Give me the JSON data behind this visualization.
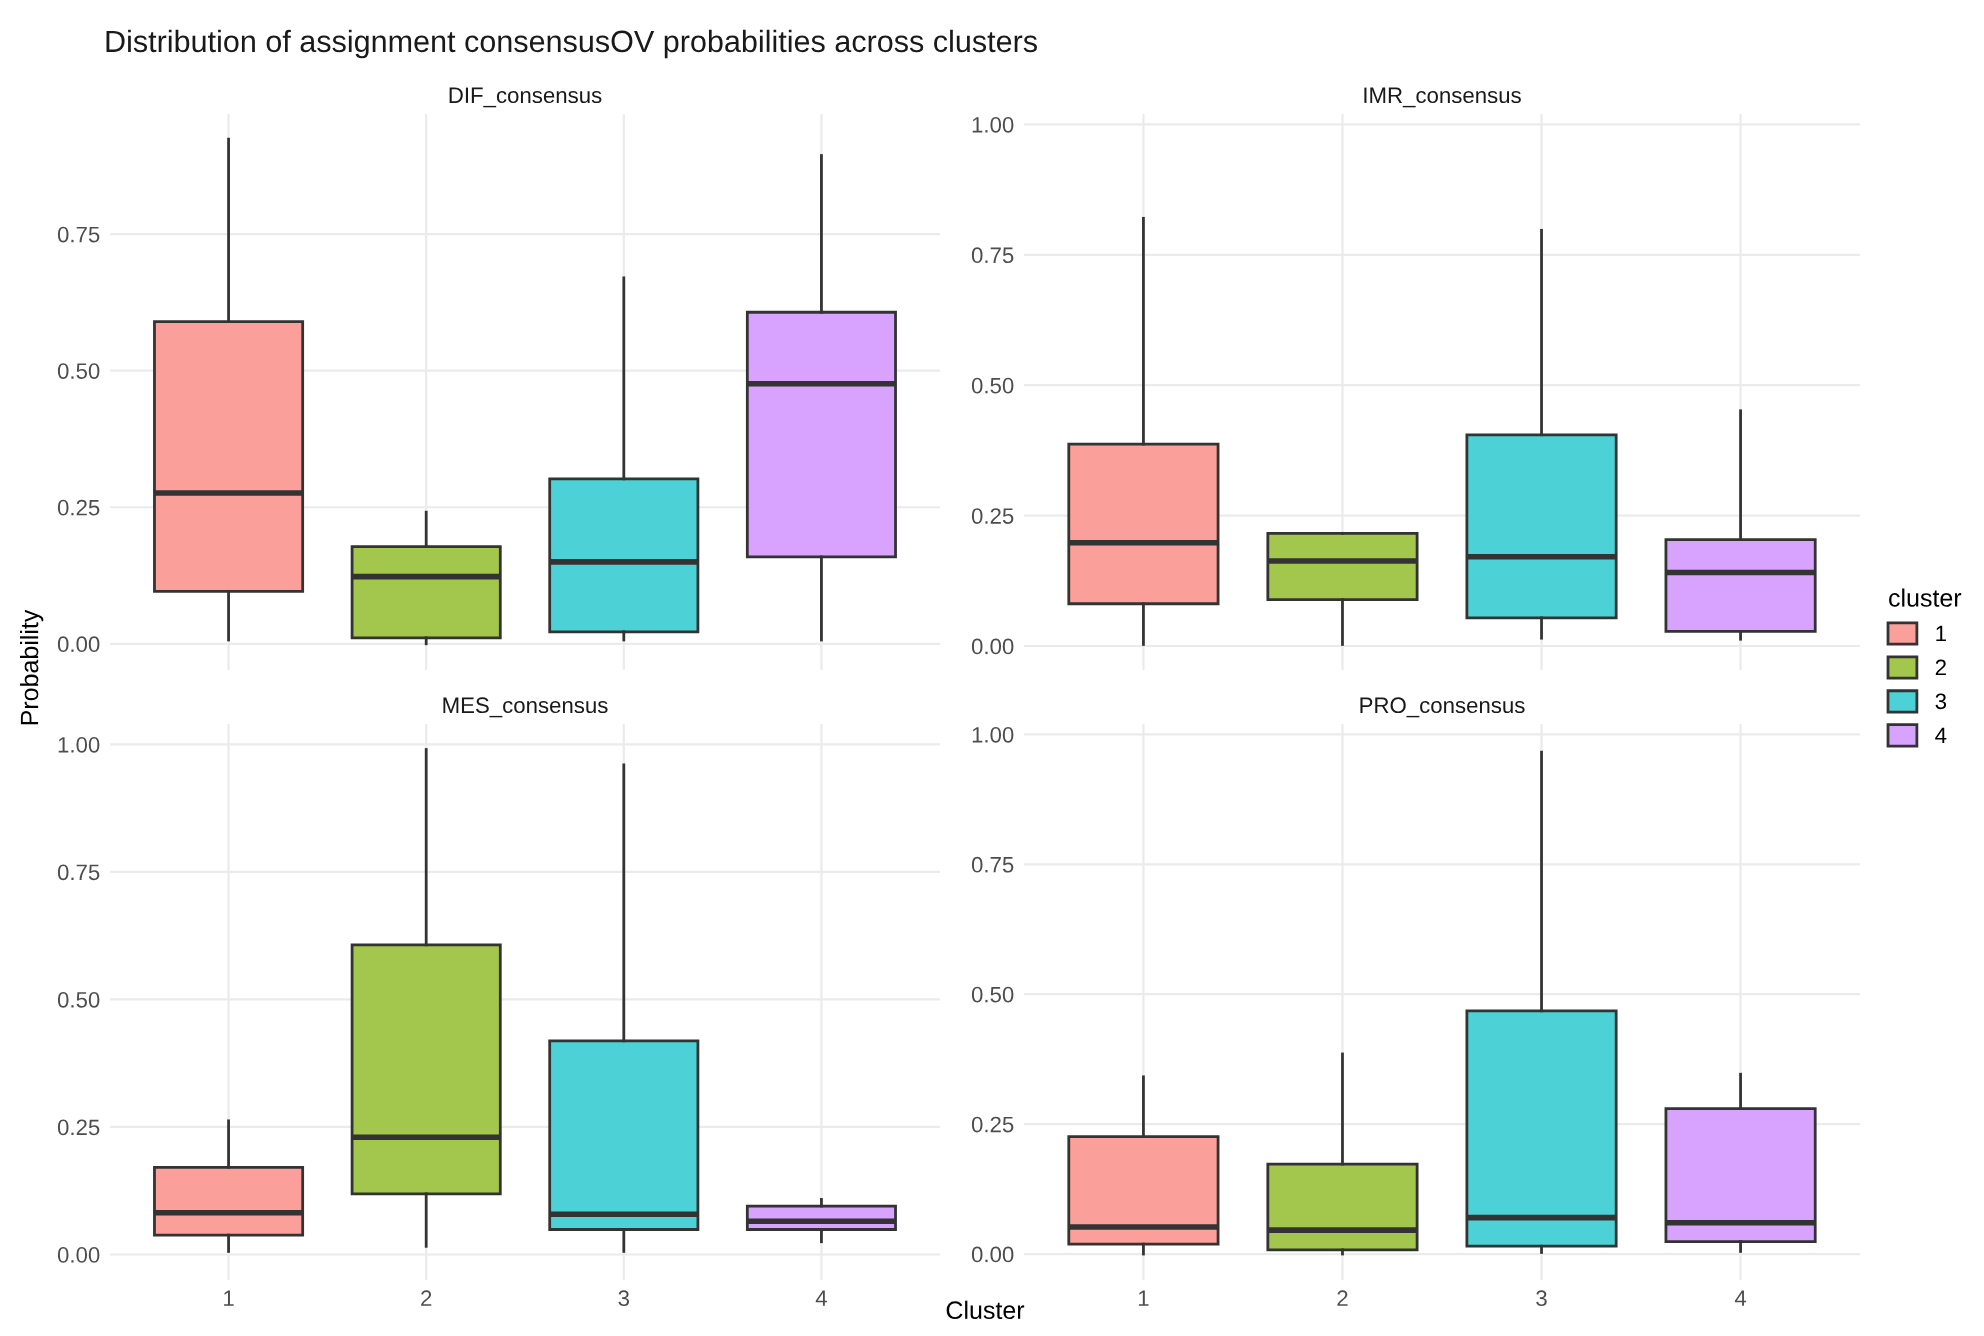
{
  "chart_data": [
    {
      "type": "box",
      "title": "Distribution of assignment consensusOV probabilities across clusters",
      "subtitle": "DIF_consensus",
      "categories": [
        "1",
        "2",
        "3",
        "4"
      ],
      "ylabel": "Probability",
      "ylim": [
        -0.048,
        0.97
      ],
      "yticks": [
        {
          "value": 0,
          "label": "0.00"
        },
        {
          "value": 0.25,
          "label": "0.25"
        },
        {
          "value": 0.5,
          "label": "0.50"
        },
        {
          "value": 0.75,
          "label": "0.75"
        }
      ],
      "tick_labels": "y",
      "grid": true,
      "series": [
        {
          "color": "#fa9f99",
          "boxes": [
            {
              "low": 0.007,
              "q1": 0.096,
              "median": 0.276,
              "q3": 0.59,
              "high": 0.924
            },
            null,
            null,
            null
          ]
        },
        {
          "color": "#a3c64c",
          "boxes": [
            null,
            {
              "low": 0.0,
              "q1": 0.011,
              "median": 0.123,
              "q3": 0.178,
              "high": 0.241
            },
            null,
            null
          ]
        },
        {
          "color": "#4cd2d6",
          "boxes": [
            null,
            null,
            {
              "low": 0.007,
              "q1": 0.022,
              "median": 0.15,
              "q3": 0.302,
              "high": 0.67
            },
            null
          ]
        },
        {
          "color": "#d8a3ff",
          "boxes": [
            null,
            null,
            null,
            {
              "low": 0.007,
              "q1": 0.159,
              "median": 0.476,
              "q3": 0.607,
              "high": 0.894
            }
          ]
        }
      ]
    },
    {
      "type": "box",
      "subtitle": "IMR_consensus",
      "categories": [
        "1",
        "2",
        "3",
        "4"
      ],
      "legend": "right",
      "legend_title": "cluster",
      "ylim": [
        -0.046,
        1.02
      ],
      "yticks": [
        {
          "value": 0,
          "label": "0.00"
        },
        {
          "value": 0.25,
          "label": "0.25"
        },
        {
          "value": 0.5,
          "label": "0.50"
        },
        {
          "value": 0.75,
          "label": "0.75"
        },
        {
          "value": 1,
          "label": "1.00"
        }
      ],
      "tick_labels": "y",
      "grid": true,
      "series": [
        {
          "name": "1",
          "color": "#fa9f99",
          "boxes": [
            {
              "low": 0.003,
              "q1": 0.081,
              "median": 0.198,
              "q3": 0.387,
              "high": 0.82
            },
            null,
            null,
            null
          ]
        },
        {
          "name": "2",
          "color": "#a3c64c",
          "boxes": [
            null,
            {
              "low": 0.003,
              "q1": 0.089,
              "median": 0.163,
              "q3": 0.216,
              "high": 0.216
            },
            null,
            null
          ]
        },
        {
          "name": "3",
          "color": "#4cd2d6",
          "boxes": [
            null,
            null,
            {
              "low": 0.015,
              "q1": 0.054,
              "median": 0.171,
              "q3": 0.405,
              "high": 0.797
            },
            null
          ]
        },
        {
          "name": "4",
          "color": "#d8a3ff",
          "boxes": [
            null,
            null,
            null,
            {
              "low": 0.013,
              "q1": 0.028,
              "median": 0.141,
              "q3": 0.204,
              "high": 0.451
            }
          ]
        }
      ]
    },
    {
      "type": "box",
      "subtitle": "MES_consensus",
      "categories": [
        "1",
        "2",
        "3",
        "4"
      ],
      "xlabel": "Cluster",
      "ylim": [
        -0.05,
        1.04
      ],
      "yticks": [
        {
          "value": 0,
          "label": "0.00"
        },
        {
          "value": 0.25,
          "label": "0.25"
        },
        {
          "value": 0.5,
          "label": "0.50"
        },
        {
          "value": 0.75,
          "label": "0.75"
        },
        {
          "value": 1,
          "label": "1.00"
        }
      ],
      "grid": true,
      "series": [
        {
          "color": "#fa9f99",
          "boxes": [
            {
              "low": 0.006,
              "q1": 0.038,
              "median": 0.082,
              "q3": 0.171,
              "high": 0.262
            },
            null,
            null,
            null
          ]
        },
        {
          "color": "#a3c64c",
          "boxes": [
            null,
            {
              "low": 0.016,
              "q1": 0.119,
              "median": 0.23,
              "q3": 0.607,
              "high": 0.99
            },
            null,
            null
          ]
        },
        {
          "color": "#4cd2d6",
          "boxes": [
            null,
            null,
            {
              "low": 0.006,
              "q1": 0.049,
              "median": 0.079,
              "q3": 0.419,
              "high": 0.96
            },
            null
          ]
        },
        {
          "color": "#d8a3ff",
          "boxes": [
            null,
            null,
            null,
            {
              "low": 0.025,
              "q1": 0.049,
              "median": 0.065,
              "q3": 0.095,
              "high": 0.108
            }
          ]
        }
      ]
    },
    {
      "type": "box",
      "subtitle": "PRO_consensus",
      "categories": [
        "1",
        "2",
        "3",
        "4"
      ],
      "ylim": [
        -0.05,
        1.02
      ],
      "yticks": [
        {
          "value": 0,
          "label": "0.00"
        },
        {
          "value": 0.25,
          "label": "0.25"
        },
        {
          "value": 0.5,
          "label": "0.50"
        },
        {
          "value": 0.75,
          "label": "0.75"
        },
        {
          "value": 1,
          "label": "1.00"
        }
      ],
      "grid": true,
      "series": [
        {
          "color": "#fa9f99",
          "boxes": [
            {
              "low": 0.0,
              "q1": 0.019,
              "median": 0.052,
              "q3": 0.226,
              "high": 0.341
            },
            null,
            null,
            null
          ]
        },
        {
          "color": "#a3c64c",
          "boxes": [
            null,
            {
              "low": 0.0,
              "q1": 0.008,
              "median": 0.046,
              "q3": 0.173,
              "high": 0.385
            },
            null,
            null
          ]
        },
        {
          "color": "#4cd2d6",
          "boxes": [
            null,
            null,
            {
              "low": 0.003,
              "q1": 0.015,
              "median": 0.07,
              "q3": 0.468,
              "high": 0.966
            },
            null
          ]
        },
        {
          "color": "#d8a3ff",
          "boxes": [
            null,
            null,
            null,
            {
              "low": 0.005,
              "q1": 0.024,
              "median": 0.06,
              "q3": 0.28,
              "high": 0.346
            }
          ]
        }
      ]
    }
  ]
}
